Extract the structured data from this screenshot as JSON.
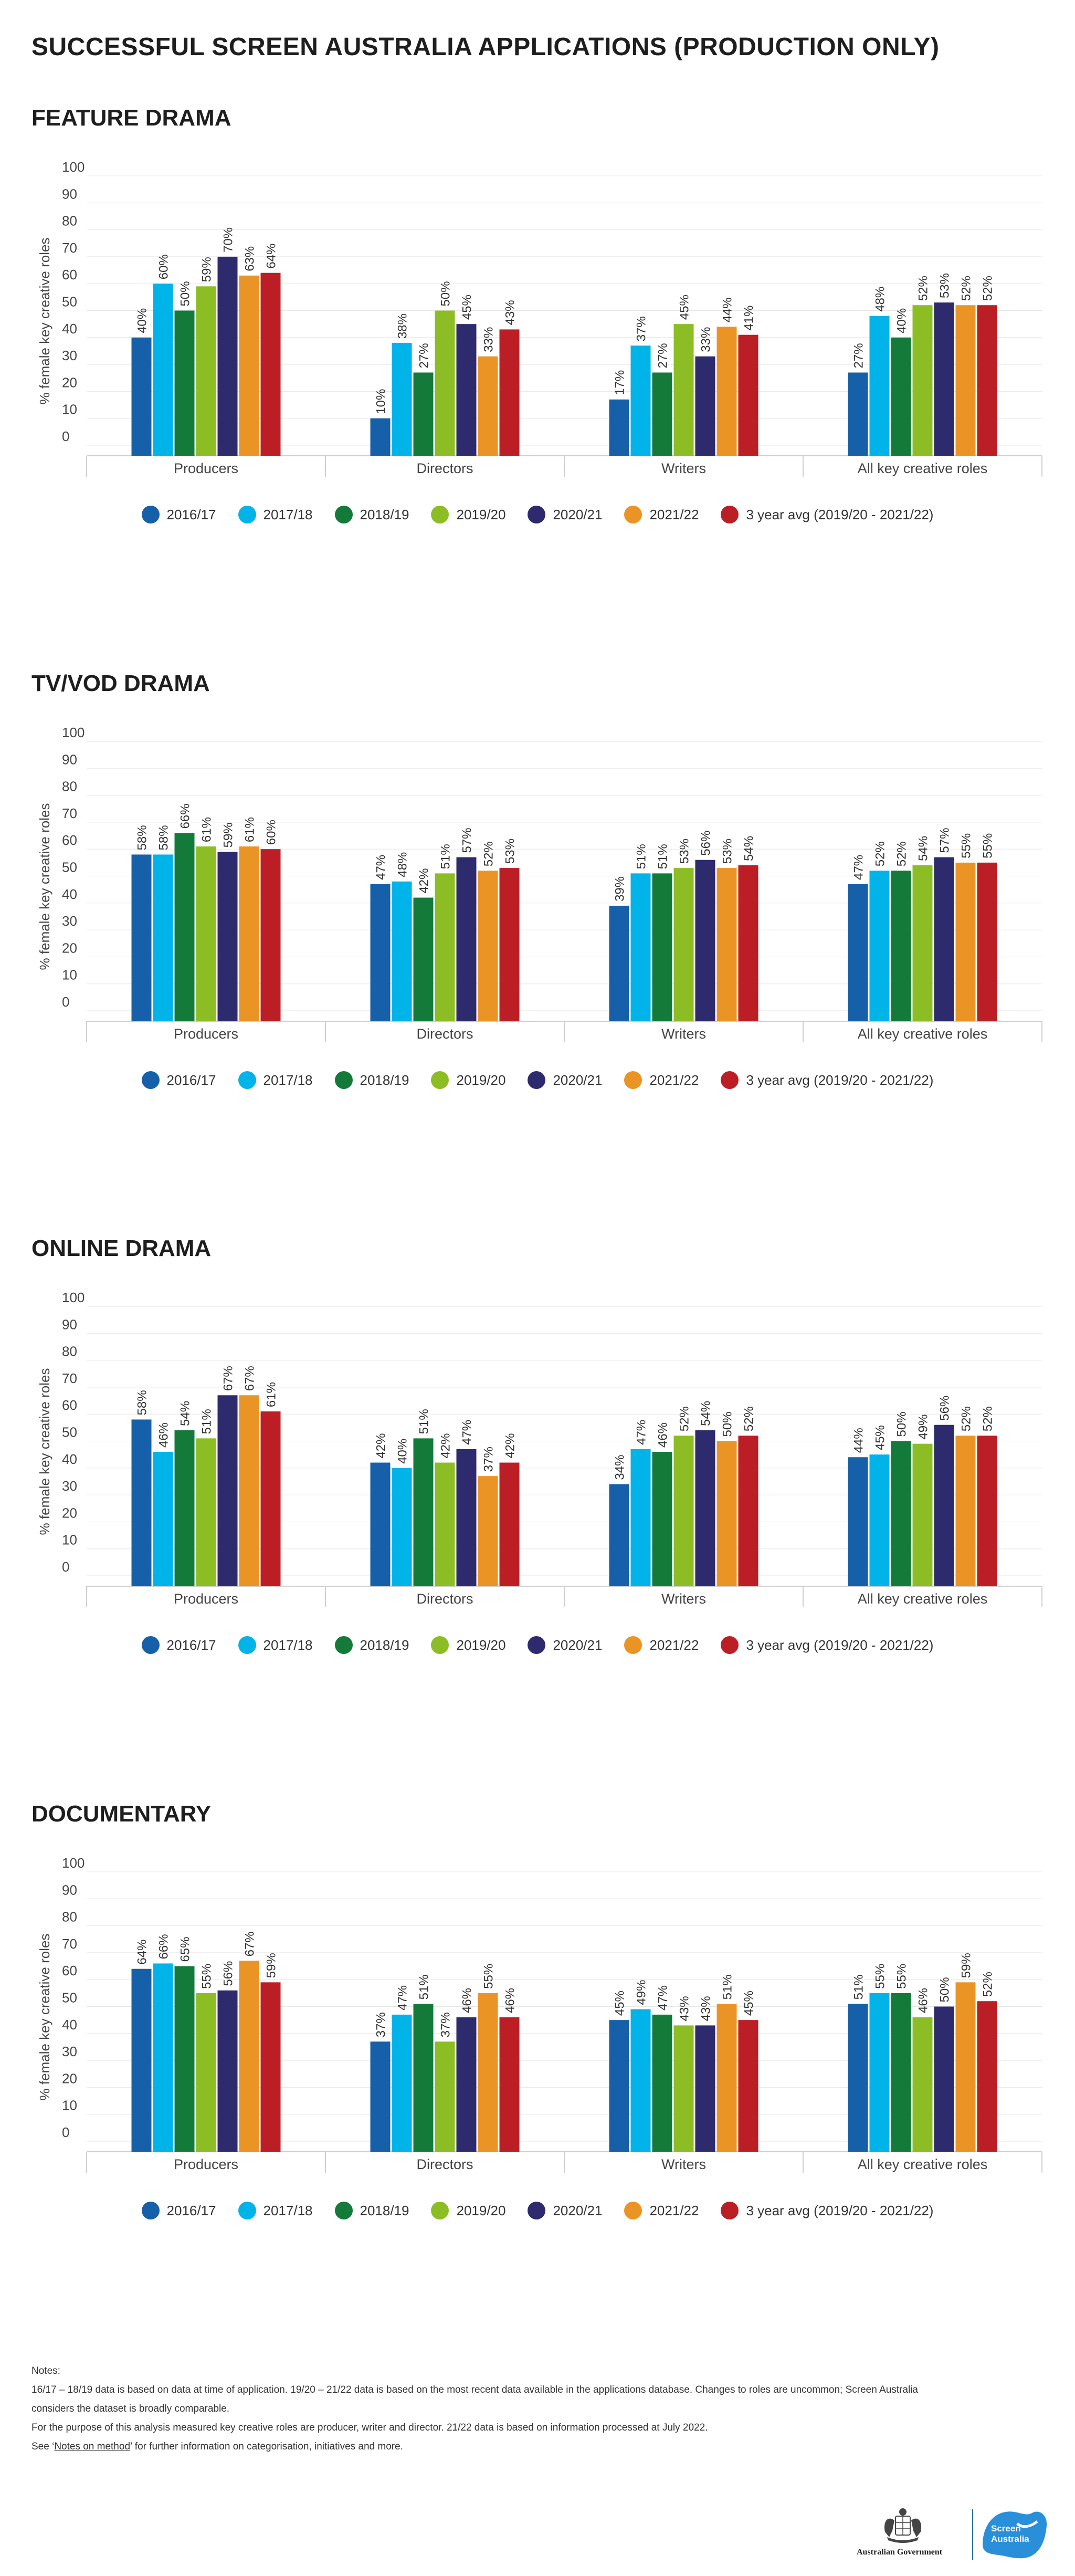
{
  "title": "SUCCESSFUL SCREEN AUSTRALIA APPLICATIONS (PRODUCTION ONLY)",
  "colors": {
    "2016/17": "#1560a8",
    "2017/18": "#00b3e8",
    "2018/19": "#137a3a",
    "2019/20": "#8cbd25",
    "2020/21": "#2e2a6e",
    "2021/22": "#eb9426",
    "3 year avg (2019/20 - 2021/22)": "#bb1e24"
  },
  "legend": {
    "items": [
      {
        "label": "2016/17",
        "color": "#1560a8"
      },
      {
        "label": "2017/18",
        "color": "#00b3e8"
      },
      {
        "label": "2018/19",
        "color": "#137a3a"
      },
      {
        "label": "2019/20",
        "color": "#8cbd25"
      },
      {
        "label": "2020/21",
        "color": "#2e2a6e"
      },
      {
        "label": "2021/22",
        "color": "#eb9426"
      },
      {
        "label": "3 year avg (2019/20 - 2021/22)",
        "color": "#bb1e24"
      }
    ]
  },
  "chart_data": [
    {
      "type": "bar",
      "title": "FEATURE DRAMA",
      "ylabel": "% female key creative roles",
      "ylim": [
        0,
        100
      ],
      "yticks": [
        0,
        10,
        20,
        30,
        40,
        50,
        60,
        70,
        80,
        90,
        100
      ],
      "grid": true,
      "legend_position": "bottom",
      "categories": [
        "Producers",
        "Directors",
        "Writers",
        "All key creative roles"
      ],
      "series": [
        {
          "name": "2016/17",
          "values": [
            40,
            10,
            17,
            27
          ]
        },
        {
          "name": "2017/18",
          "values": [
            60,
            38,
            37,
            48
          ]
        },
        {
          "name": "2018/19",
          "values": [
            50,
            27,
            27,
            40
          ]
        },
        {
          "name": "2019/20",
          "values": [
            59,
            50,
            45,
            52
          ]
        },
        {
          "name": "2020/21",
          "values": [
            70,
            45,
            33,
            53
          ]
        },
        {
          "name": "2021/22",
          "values": [
            63,
            33,
            44,
            52
          ]
        },
        {
          "name": "3 year avg (2019/20 - 2021/22)",
          "values": [
            64,
            43,
            41,
            52
          ]
        }
      ]
    },
    {
      "type": "bar",
      "title": "TV/VOD DRAMA",
      "ylabel": "% female key creative roles",
      "ylim": [
        0,
        100
      ],
      "yticks": [
        0,
        10,
        20,
        30,
        40,
        50,
        60,
        70,
        80,
        90,
        100
      ],
      "grid": true,
      "legend_position": "bottom",
      "categories": [
        "Producers",
        "Directors",
        "Writers",
        "All key creative roles"
      ],
      "series": [
        {
          "name": "2016/17",
          "values": [
            58,
            47,
            39,
            47
          ]
        },
        {
          "name": "2017/18",
          "values": [
            58,
            48,
            51,
            52
          ]
        },
        {
          "name": "2018/19",
          "values": [
            66,
            42,
            51,
            52
          ]
        },
        {
          "name": "2019/20",
          "values": [
            61,
            51,
            53,
            54
          ]
        },
        {
          "name": "2020/21",
          "values": [
            59,
            57,
            56,
            57
          ]
        },
        {
          "name": "2021/22",
          "values": [
            61,
            52,
            53,
            55
          ]
        },
        {
          "name": "3 year avg (2019/20 - 2021/22)",
          "values": [
            60,
            53,
            54,
            55
          ]
        }
      ]
    },
    {
      "type": "bar",
      "title": "ONLINE DRAMA",
      "ylabel": "% female key creative roles",
      "ylim": [
        0,
        100
      ],
      "yticks": [
        0,
        10,
        20,
        30,
        40,
        50,
        60,
        70,
        80,
        90,
        100
      ],
      "grid": true,
      "legend_position": "bottom",
      "categories": [
        "Producers",
        "Directors",
        "Writers",
        "All key creative roles"
      ],
      "series": [
        {
          "name": "2016/17",
          "values": [
            58,
            42,
            34,
            44
          ]
        },
        {
          "name": "2017/18",
          "values": [
            46,
            40,
            47,
            45
          ]
        },
        {
          "name": "2018/19",
          "values": [
            54,
            51,
            46,
            50
          ]
        },
        {
          "name": "2019/20",
          "values": [
            51,
            42,
            52,
            49
          ]
        },
        {
          "name": "2020/21",
          "values": [
            67,
            47,
            54,
            56
          ]
        },
        {
          "name": "2021/22",
          "values": [
            67,
            37,
            50,
            52
          ]
        },
        {
          "name": "3 year avg (2019/20 - 2021/22)",
          "values": [
            61,
            42,
            52,
            52
          ]
        }
      ]
    },
    {
      "type": "bar",
      "title": "DOCUMENTARY",
      "ylabel": "% female key creative roles",
      "ylim": [
        0,
        100
      ],
      "yticks": [
        0,
        10,
        20,
        30,
        40,
        50,
        60,
        70,
        80,
        90,
        100
      ],
      "grid": true,
      "legend_position": "bottom",
      "categories": [
        "Producers",
        "Directors",
        "Writers",
        "All key creative roles"
      ],
      "series": [
        {
          "name": "2016/17",
          "values": [
            64,
            37,
            45,
            51
          ]
        },
        {
          "name": "2017/18",
          "values": [
            66,
            47,
            49,
            55
          ]
        },
        {
          "name": "2018/19",
          "values": [
            65,
            51,
            47,
            55
          ]
        },
        {
          "name": "2019/20",
          "values": [
            55,
            37,
            43,
            46
          ]
        },
        {
          "name": "2020/21",
          "values": [
            56,
            46,
            43,
            50
          ]
        },
        {
          "name": "2021/22",
          "values": [
            67,
            55,
            51,
            59
          ]
        },
        {
          "name": "3 year avg (2019/20 - 2021/22)",
          "values": [
            59,
            46,
            45,
            52
          ]
        }
      ]
    }
  ],
  "notes": {
    "heading": "Notes:",
    "line1": "16/17 – 18/19 data is based on data at time of application. 19/20 – 21/22 data is based on the most recent data available in the applications database. Changes to roles are uncommon; Screen Australia",
    "line2": "considers the dataset is broadly comparable.",
    "line3": "For the purpose of this analysis measured key creative roles are producer, writer and director. 21/22 data is based on information processed at July 2022.",
    "line4_prefix": "See ‘",
    "line4_link": "Notes on method",
    "line4_suffix": "’ for further information on categorisation, initiatives and more."
  },
  "footer": {
    "gov_logo_text": "Australian Government",
    "sa_logo_line1": "Screen",
    "sa_logo_line2": "Australia"
  }
}
